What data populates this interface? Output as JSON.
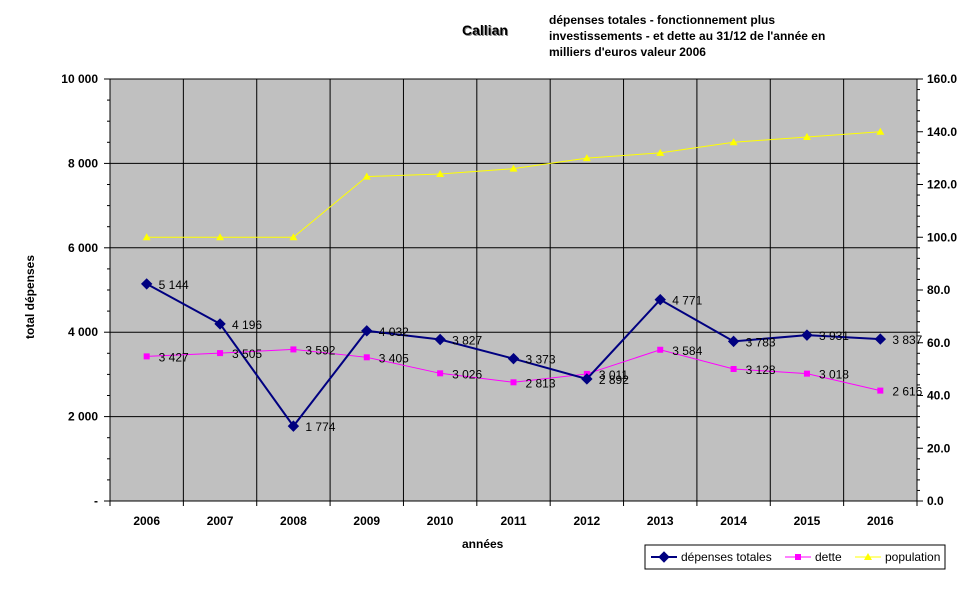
{
  "chart_data": {
    "type": "line",
    "title": "Callian",
    "subtitle_lines": [
      "dépenses totales - fonctionnement plus",
      "investissements - et dette au 31/12 de l'année en",
      "milliers d'euros valeur 2006"
    ],
    "xlabel": "années",
    "ylabel": "total dépenses",
    "categories": [
      "2006",
      "2007",
      "2008",
      "2009",
      "2010",
      "2011",
      "2012",
      "2013",
      "2014",
      "2015",
      "2016"
    ],
    "y_left": {
      "min": 0,
      "max": 10000,
      "ticks": [
        "-",
        "2 000",
        "4 000",
        "6 000",
        "8 000",
        "10 000"
      ],
      "tick_values": [
        0,
        2000,
        4000,
        6000,
        8000,
        10000
      ]
    },
    "y_right": {
      "min": 0,
      "max": 160,
      "ticks": [
        "0.0",
        "20.0",
        "40.0",
        "60.0",
        "80.0",
        "100.0",
        "120.0",
        "140.0",
        "160.0"
      ],
      "tick_values": [
        0,
        20,
        40,
        60,
        80,
        100,
        120,
        140,
        160
      ]
    },
    "series": [
      {
        "name": "dépenses totales",
        "axis": "left",
        "color": "#000080",
        "marker": "diamond",
        "values": [
          5144,
          4196,
          1774,
          4032,
          3827,
          3373,
          2892,
          4771,
          3783,
          3931,
          3837
        ],
        "labels": [
          "5 144",
          "4 196",
          "1 774",
          "4 032",
          "3 827",
          "3 373",
          "2 892",
          "4 771",
          "3 783",
          "3 931",
          "3 837"
        ]
      },
      {
        "name": "dette",
        "axis": "left",
        "color": "#ff00ff",
        "marker": "square",
        "values": [
          3427,
          3505,
          3592,
          3405,
          3026,
          2813,
          3011,
          3584,
          3128,
          3018,
          2616
        ],
        "labels": [
          "3 427",
          "3 505",
          "3 592",
          "3 405",
          "3 026",
          "2 813",
          "3 011",
          "3 584",
          "3 128",
          "3 018",
          "2 616"
        ]
      },
      {
        "name": "population",
        "axis": "right",
        "color": "#ffff00",
        "marker": "triangle",
        "values": [
          100,
          100,
          100,
          123,
          124,
          126,
          130,
          132,
          136,
          138,
          140
        ]
      }
    ],
    "grid": true,
    "legend": "bottom-right"
  }
}
